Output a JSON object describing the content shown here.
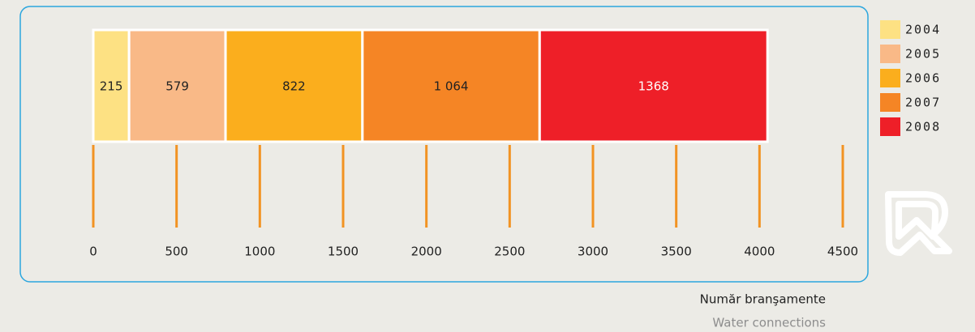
{
  "chart_data": {
    "type": "bar",
    "orientation": "horizontal",
    "stacked": true,
    "series": [
      {
        "name": "2004",
        "color": "#fde183",
        "values": [
          215
        ]
      },
      {
        "name": "2005",
        "color": "#f9b987",
        "values": [
          579
        ]
      },
      {
        "name": "2006",
        "color": "#fbae1d",
        "values": [
          822
        ]
      },
      {
        "name": "2007",
        "color": "#f58525",
        "values": [
          1064
        ],
        "value_labels": [
          "1 064"
        ]
      },
      {
        "name": "2008",
        "color": "#ee1f28",
        "values": [
          1368
        ]
      }
    ],
    "xlim": [
      0,
      4500
    ],
    "xticks": [
      0,
      500,
      1000,
      1500,
      2000,
      2500,
      3000,
      3500,
      4000,
      4500
    ],
    "tick_color": "#f29323",
    "axis_labels": [
      "Număr branşamente",
      "Water connections"
    ],
    "legend": "right"
  }
}
